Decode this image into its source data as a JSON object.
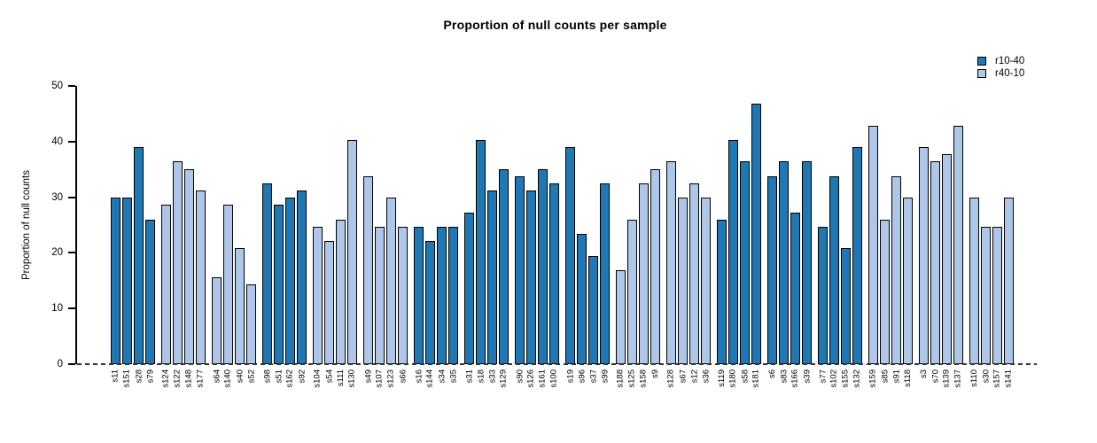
{
  "title": "Proportion of null counts per sample",
  "chart_data": {
    "type": "bar",
    "title": "Proportion of null counts per sample",
    "xlabel": "",
    "ylabel": "Proportion of null counts",
    "ylim": [
      0,
      50
    ],
    "yticks": [
      0,
      10,
      20,
      30,
      40,
      50
    ],
    "grid": false,
    "zero_line_style": "dashed",
    "legend_position": "top-right",
    "group_size": 4,
    "legend": [
      {
        "name": "r10-40",
        "color": "#1F77B4"
      },
      {
        "name": "r40-10",
        "color": "#AEC7E8"
      }
    ],
    "bars": [
      {
        "label": "s11",
        "value": 29.9,
        "series": "r10-40"
      },
      {
        "label": "s151",
        "value": 29.9,
        "series": "r10-40"
      },
      {
        "label": "s28",
        "value": 39.0,
        "series": "r10-40"
      },
      {
        "label": "s79",
        "value": 26.0,
        "series": "r10-40"
      },
      {
        "label": "s124",
        "value": 28.6,
        "series": "r40-10"
      },
      {
        "label": "s122",
        "value": 36.4,
        "series": "r40-10"
      },
      {
        "label": "s148",
        "value": 35.1,
        "series": "r40-10"
      },
      {
        "label": "s177",
        "value": 31.2,
        "series": "r40-10"
      },
      {
        "label": "s64",
        "value": 15.6,
        "series": "r40-10"
      },
      {
        "label": "s140",
        "value": 28.6,
        "series": "r40-10"
      },
      {
        "label": "s40",
        "value": 20.8,
        "series": "r40-10"
      },
      {
        "label": "s52",
        "value": 14.3,
        "series": "r40-10"
      },
      {
        "label": "s98",
        "value": 32.5,
        "series": "r10-40"
      },
      {
        "label": "s51",
        "value": 28.6,
        "series": "r10-40"
      },
      {
        "label": "s162",
        "value": 29.9,
        "series": "r10-40"
      },
      {
        "label": "s92",
        "value": 31.2,
        "series": "r10-40"
      },
      {
        "label": "s104",
        "value": 24.7,
        "series": "r40-10"
      },
      {
        "label": "s54",
        "value": 22.1,
        "series": "r40-10"
      },
      {
        "label": "s111",
        "value": 26.0,
        "series": "r40-10"
      },
      {
        "label": "s130",
        "value": 40.3,
        "series": "r40-10"
      },
      {
        "label": "s49",
        "value": 33.8,
        "series": "r40-10"
      },
      {
        "label": "s107",
        "value": 24.7,
        "series": "r40-10"
      },
      {
        "label": "s123",
        "value": 29.9,
        "series": "r40-10"
      },
      {
        "label": "s66",
        "value": 24.7,
        "series": "r40-10"
      },
      {
        "label": "s16",
        "value": 24.7,
        "series": "r10-40"
      },
      {
        "label": "s144",
        "value": 22.1,
        "series": "r10-40"
      },
      {
        "label": "s34",
        "value": 24.7,
        "series": "r10-40"
      },
      {
        "label": "s35",
        "value": 24.7,
        "series": "r10-40"
      },
      {
        "label": "s31",
        "value": 27.3,
        "series": "r10-40"
      },
      {
        "label": "s18",
        "value": 40.3,
        "series": "r10-40"
      },
      {
        "label": "s33",
        "value": 31.2,
        "series": "r10-40"
      },
      {
        "label": "s129",
        "value": 35.1,
        "series": "r10-40"
      },
      {
        "label": "s90",
        "value": 33.8,
        "series": "r10-40"
      },
      {
        "label": "s126",
        "value": 31.2,
        "series": "r10-40"
      },
      {
        "label": "s161",
        "value": 35.1,
        "series": "r10-40"
      },
      {
        "label": "s100",
        "value": 32.5,
        "series": "r10-40"
      },
      {
        "label": "s19",
        "value": 39.0,
        "series": "r10-40"
      },
      {
        "label": "s96",
        "value": 23.4,
        "series": "r10-40"
      },
      {
        "label": "s37",
        "value": 19.5,
        "series": "r10-40"
      },
      {
        "label": "s99",
        "value": 32.5,
        "series": "r10-40"
      },
      {
        "label": "s188",
        "value": 16.9,
        "series": "r40-10"
      },
      {
        "label": "s125",
        "value": 26.0,
        "series": "r40-10"
      },
      {
        "label": "s158",
        "value": 32.5,
        "series": "r40-10"
      },
      {
        "label": "s9",
        "value": 35.1,
        "series": "r40-10"
      },
      {
        "label": "s128",
        "value": 36.4,
        "series": "r40-10"
      },
      {
        "label": "s67",
        "value": 29.9,
        "series": "r40-10"
      },
      {
        "label": "s12",
        "value": 32.5,
        "series": "r40-10"
      },
      {
        "label": "s36",
        "value": 29.9,
        "series": "r40-10"
      },
      {
        "label": "s119",
        "value": 26.0,
        "series": "r10-40"
      },
      {
        "label": "s180",
        "value": 40.3,
        "series": "r10-40"
      },
      {
        "label": "s58",
        "value": 36.4,
        "series": "r10-40"
      },
      {
        "label": "s181",
        "value": 46.8,
        "series": "r10-40"
      },
      {
        "label": "s6",
        "value": 33.8,
        "series": "r10-40"
      },
      {
        "label": "s83",
        "value": 36.4,
        "series": "r10-40"
      },
      {
        "label": "s166",
        "value": 27.3,
        "series": "r10-40"
      },
      {
        "label": "s39",
        "value": 36.4,
        "series": "r10-40"
      },
      {
        "label": "s77",
        "value": 24.7,
        "series": "r10-40"
      },
      {
        "label": "s102",
        "value": 33.8,
        "series": "r10-40"
      },
      {
        "label": "s155",
        "value": 20.8,
        "series": "r10-40"
      },
      {
        "label": "s132",
        "value": 39.0,
        "series": "r10-40"
      },
      {
        "label": "s159",
        "value": 42.9,
        "series": "r40-10"
      },
      {
        "label": "s85",
        "value": 26.0,
        "series": "r40-10"
      },
      {
        "label": "s91",
        "value": 33.8,
        "series": "r40-10"
      },
      {
        "label": "s118",
        "value": 29.9,
        "series": "r40-10"
      },
      {
        "label": "s3",
        "value": 39.0,
        "series": "r40-10"
      },
      {
        "label": "s70",
        "value": 36.4,
        "series": "r40-10"
      },
      {
        "label": "s139",
        "value": 37.7,
        "series": "r40-10"
      },
      {
        "label": "s137",
        "value": 42.9,
        "series": "r40-10"
      },
      {
        "label": "s110",
        "value": 29.9,
        "series": "r40-10"
      },
      {
        "label": "s30",
        "value": 24.7,
        "series": "r40-10"
      },
      {
        "label": "s157",
        "value": 24.7,
        "series": "r40-10"
      },
      {
        "label": "s141",
        "value": 29.9,
        "series": "r40-10"
      }
    ]
  }
}
